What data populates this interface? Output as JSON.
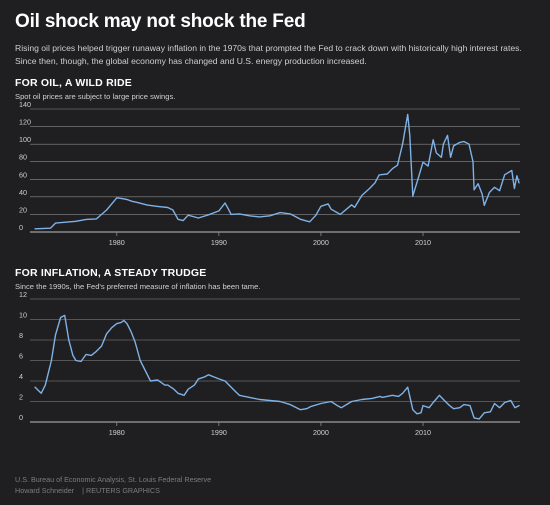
{
  "headline": "Oil shock may not shock the Fed",
  "deck": "Rising oil prices helped trigger runaway inflation in the 1970s that prompted the Fed to crack down with historically high interest rates. Since then, though, the global economy has changed and U.S. energy production increased.",
  "footer": {
    "source": "U.S. Bureau of Economic Analysis, St. Louis Federal Reserve",
    "byline": "Howard Schneider",
    "credit": "| REUTERS GRAPHICS"
  },
  "colors": {
    "background": "#1f1e21",
    "line": "#7fb2e5",
    "text": "#d9d9d9",
    "grid": "#8c8c8c"
  },
  "chart_data": [
    {
      "type": "line",
      "title": "FOR OIL, A WILD RIDE",
      "subtitle": "Spot oil prices are subject to large price swings.",
      "xlabel": "",
      "ylabel": "",
      "xlim": [
        1971.5,
        2019.5
      ],
      "ylim": [
        0,
        140
      ],
      "yticks": [
        0,
        20,
        40,
        60,
        80,
        100,
        120,
        140
      ],
      "xticks": [
        1980,
        1990,
        2000,
        2010
      ],
      "grid": true,
      "series": [
        {
          "x": [
            1972,
            1973.5,
            1974,
            1975,
            1976,
            1977,
            1978,
            1979,
            1979.5,
            1980,
            1980.5,
            1981,
            1981.5,
            1982,
            1983,
            1984,
            1985,
            1985.5,
            1986,
            1986.5,
            1987,
            1988,
            1989,
            1990,
            1990.6,
            1990.9,
            1991.2,
            1992,
            1993,
            1994,
            1995,
            1996,
            1997,
            1998,
            1998.9,
            1999.5,
            2000,
            2000.7,
            2001,
            2001.9,
            2002.5,
            2003,
            2003.3,
            2004,
            2004.8,
            2005.3,
            2005.7,
            2006.5,
            2007,
            2007.5,
            2008,
            2008.5,
            2008.7,
            2009,
            2009.5,
            2010,
            2010.5,
            2011,
            2011.3,
            2011.8,
            2012,
            2012.4,
            2012.7,
            2013,
            2013.6,
            2014,
            2014.5,
            2014.9,
            2015,
            2015.4,
            2015.8,
            2016,
            2016.5,
            2017,
            2017.5,
            2018,
            2018.7,
            2018.95,
            2019.2,
            2019.4
          ],
          "y": [
            3.6,
            4.3,
            10.1,
            11.2,
            12.2,
            14.3,
            14.9,
            25,
            32,
            38.9,
            38,
            37,
            35,
            33.7,
            30.6,
            29.1,
            27.9,
            25,
            14.4,
            13,
            19.1,
            15.9,
            19.6,
            24,
            33,
            27,
            20,
            20.6,
            18.4,
            17.2,
            18.4,
            22.1,
            20.6,
            14.4,
            11.6,
            19,
            29.3,
            32,
            25.9,
            20,
            26,
            31,
            28,
            41.5,
            50,
            56,
            65,
            66,
            72,
            76,
            100,
            133.9,
            110,
            41,
            60,
            79.5,
            75,
            105,
            90,
            85,
            100,
            110,
            85,
            98,
            102,
            103,
            100,
            80,
            48,
            55,
            43,
            30.3,
            45,
            50.9,
            47,
            65.2,
            70,
            49.5,
            64,
            56
          ]
        }
      ]
    },
    {
      "type": "line",
      "title": "FOR INFLATION, A STEADY TRUDGE",
      "subtitle": "Since the 1990s, the Fed's preferred measure of inflation has been tame.",
      "xlabel": "",
      "ylabel": "",
      "xlim": [
        1971.5,
        2019.5
      ],
      "ylim": [
        0,
        12
      ],
      "yticks": [
        0,
        2,
        4,
        6,
        8,
        10,
        12
      ],
      "xticks": [
        1980,
        1990,
        2000,
        2010
      ],
      "grid": true,
      "series": [
        {
          "x": [
            1972,
            1972.6,
            1973,
            1973.6,
            1974,
            1974.5,
            1974.9,
            1975.3,
            1975.7,
            1976,
            1976.5,
            1977,
            1977.5,
            1978,
            1978.5,
            1979,
            1979.5,
            1980,
            1980.4,
            1980.7,
            1981,
            1981.4,
            1981.8,
            1982.3,
            1982.8,
            1983.3,
            1984,
            1984.7,
            1985,
            1985.6,
            1986,
            1986.6,
            1987,
            1987.6,
            1988,
            1988.6,
            1989,
            1989.5,
            1990,
            1990.6,
            1991,
            1991.6,
            1992,
            1993,
            1994,
            1995,
            1996,
            1997,
            1998,
            1998.6,
            1999,
            2000,
            2001,
            2001.6,
            2002,
            2003,
            2004,
            2005,
            2005.8,
            2006,
            2007,
            2007.6,
            2008,
            2008.5,
            2009,
            2009.4,
            2009.8,
            2010,
            2010.6,
            2011,
            2011.6,
            2012,
            2012.6,
            2013,
            2013.6,
            2014,
            2014.6,
            2015,
            2015.5,
            2016,
            2016.6,
            2017,
            2017.5,
            2018,
            2018.6,
            2019,
            2019.4
          ],
          "y": [
            3.4,
            2.8,
            3.6,
            6,
            8.5,
            10.2,
            10.4,
            8,
            6.5,
            6,
            5.9,
            6.6,
            6.5,
            6.9,
            7.4,
            8.6,
            9.2,
            9.6,
            9.7,
            9.9,
            9.6,
            8.8,
            7.8,
            6,
            5,
            4,
            4.1,
            3.6,
            3.6,
            3.2,
            2.8,
            2.6,
            3.2,
            3.6,
            4.2,
            4.4,
            4.6,
            4.4,
            4.2,
            4,
            3.6,
            3,
            2.6,
            2.4,
            2.2,
            2.1,
            2,
            1.7,
            1.2,
            1.3,
            1.5,
            1.8,
            2,
            1.6,
            1.4,
            2,
            2.2,
            2.3,
            2.5,
            2.4,
            2.6,
            2.5,
            2.8,
            3.4,
            1.2,
            0.8,
            0.9,
            1.6,
            1.4,
            1.9,
            2.6,
            2.2,
            1.6,
            1.3,
            1.4,
            1.7,
            1.6,
            0.4,
            0.3,
            0.9,
            1,
            1.8,
            1.4,
            1.9,
            2.1,
            1.4,
            1.6
          ]
        }
      ]
    }
  ]
}
